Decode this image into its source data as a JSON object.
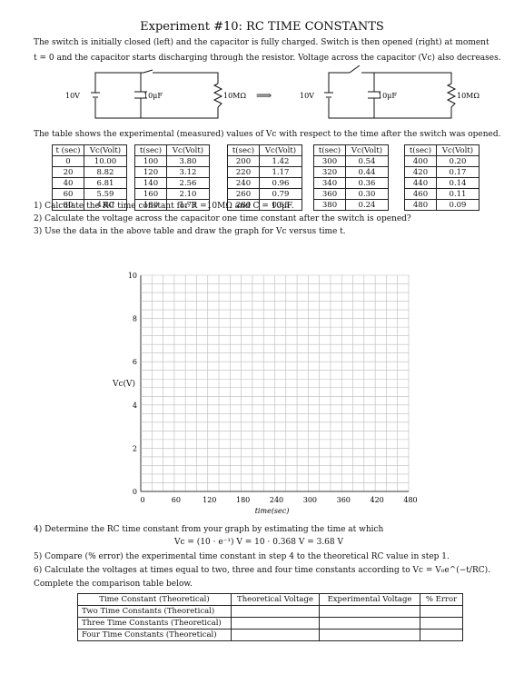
{
  "title": "Experiment #10: RC TIME CONSTANTS",
  "intro": {
    "line1": "The switch is initially closed (left) and the capacitor is fully charged. Switch is then opened (right) at moment",
    "line2": "t = 0 and the capacitor starts discharging through the resistor. Voltage across the capacitor (Vc) also decreases."
  },
  "circuit": {
    "battery_label": "10V",
    "capacitor_label": "10μF",
    "resistor_label": "10MΩ",
    "arrow": "⟹"
  },
  "table_intro": "The table shows the experimental (measured) values of Vc with respect to the time after the switch was opened.",
  "data_table": {
    "headers": [
      "t (sec)",
      "Vc(Volt)",
      "t(sec)",
      "Vc(Volt)",
      "t(sec)",
      "Vc(Volt)",
      "t(sec)",
      "Vc(Volt)",
      "t(sec)",
      "Vc(Volt)"
    ],
    "blocks": [
      {
        "t": [
          "0",
          "20",
          "40",
          "60",
          "80"
        ],
        "v": [
          "10.00",
          "8.82",
          "6.81",
          "5.59",
          "4.60"
        ]
      },
      {
        "t": [
          "100",
          "120",
          "140",
          "160",
          "180"
        ],
        "v": [
          "3.80",
          "3.12",
          "2.56",
          "2.10",
          "1.73"
        ]
      },
      {
        "t": [
          "200",
          "220",
          "240",
          "260",
          "280"
        ],
        "v": [
          "1.42",
          "1.17",
          "0.96",
          "0.79",
          "0.65"
        ]
      },
      {
        "t": [
          "300",
          "320",
          "340",
          "360",
          "380"
        ],
        "v": [
          "0.54",
          "0.44",
          "0.36",
          "0.30",
          "0.24"
        ]
      },
      {
        "t": [
          "400",
          "420",
          "440",
          "460",
          "480"
        ],
        "v": [
          "0.20",
          "0.17",
          "0.14",
          "0.11",
          "0.09"
        ]
      }
    ]
  },
  "questions": {
    "q1": "1) Calculate the RC time constant for R =10MΩ and C = 10μF.",
    "q2": "2) Calculate the voltage across the capacitor one time constant after the switch is opened?",
    "q3": "3) Use the data in the above table and draw the graph for Vc versus time t.",
    "q4": "4) Determine the RC time constant from your graph by estimating the time at which",
    "q4b": "Vc = (10 · e⁻¹) V = 10 · 0.368 V = 3.68 V",
    "q5": "5) Compare (% error) the experimental time constant in step 4 to the theoretical RC value in step 1.",
    "q6": "6) Calculate the voltages at times equal to two, three and four time constants according to Vc = V₀e^(−t/RC).",
    "q7": "Complete the comparison table below."
  },
  "graph": {
    "ylabel": "Vc(V)",
    "xlabel": "time(sec)",
    "yticks": [
      "10",
      "8",
      "6",
      "4",
      "2",
      "0"
    ],
    "xticks": [
      "0",
      "60",
      "120",
      "180",
      "240",
      "300",
      "360",
      "420",
      "480"
    ]
  },
  "comparison": {
    "headers": [
      "Time Constant (Theoretical)",
      "Theoretical Voltage",
      "Experimental Voltage",
      "% Error"
    ],
    "rows": [
      "Two Time Constants (Theoretical)",
      "Three Time Constants (Theoretical)",
      "Four Time Constants (Theoretical)"
    ]
  }
}
